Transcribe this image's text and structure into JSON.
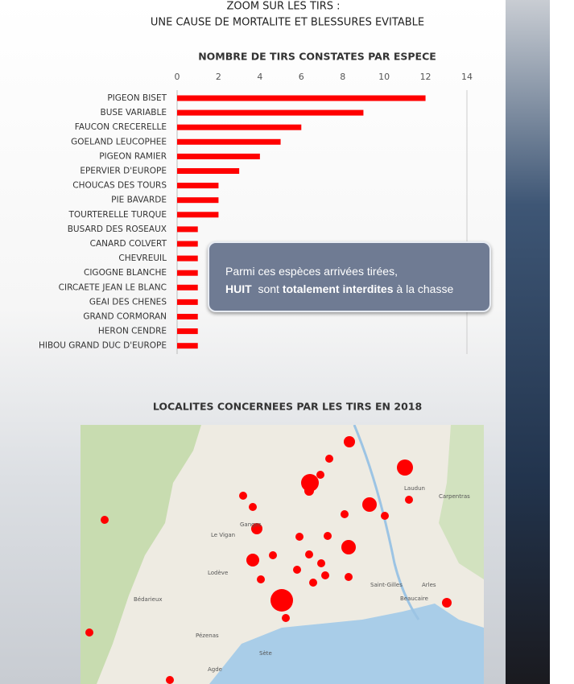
{
  "header": {
    "title_line1": "ZOOM SUR LES TIRS :",
    "title_line2": "UNE CAUSE DE MORTALITE ET BLESSURES EVITABLE"
  },
  "chart_data": {
    "type": "bar",
    "orientation": "horizontal",
    "title": "NOMBRE DE TIRS CONSTATES PAR ESPECE",
    "categories": [
      "PIGEON BISET",
      "BUSE VARIABLE",
      "FAUCON CRECERELLE",
      "GOELAND LEUCOPHEE",
      "PIGEON RAMIER",
      "EPERVIER D'EUROPE",
      "CHOUCAS DES TOURS",
      "PIE BAVARDE",
      "TOURTERELLE TURQUE",
      "BUSARD DES ROSEAUX",
      "CANARD COLVERT",
      "CHEVREUIL",
      "CIGOGNE BLANCHE",
      "CIRCAETE JEAN LE BLANC",
      "GEAI DES CHENES",
      "GRAND CORMORAN",
      "HERON CENDRE",
      "HIBOU GRAND DUC D'EUROPE"
    ],
    "values": [
      12,
      9,
      6,
      5,
      4,
      3,
      2,
      2,
      2,
      1,
      1,
      1,
      1,
      1,
      1,
      1,
      1,
      1
    ],
    "color": "#ff0000",
    "xlim": [
      0,
      14
    ],
    "xticks": [
      0,
      2,
      4,
      6,
      8,
      10,
      12,
      14
    ],
    "grid": false
  },
  "callout": {
    "line1": "Parmi ces espèces arrivées tirées,",
    "bold1": "HUIT",
    "mid": "  sont ",
    "bold2": "totalement interdites",
    "end": " à la chasse"
  },
  "map": {
    "title": "LOCALITES CONCERNEES PAR LES TIRS EN 2018",
    "places": [
      "Le Vigan",
      "Ganges",
      "Lodève",
      "Bédarieux",
      "Pézenas",
      "Sète",
      "Agde",
      "Beaucaire",
      "Arles",
      "Saint-Gilles",
      "Carpentras",
      "Laudun"
    ]
  }
}
